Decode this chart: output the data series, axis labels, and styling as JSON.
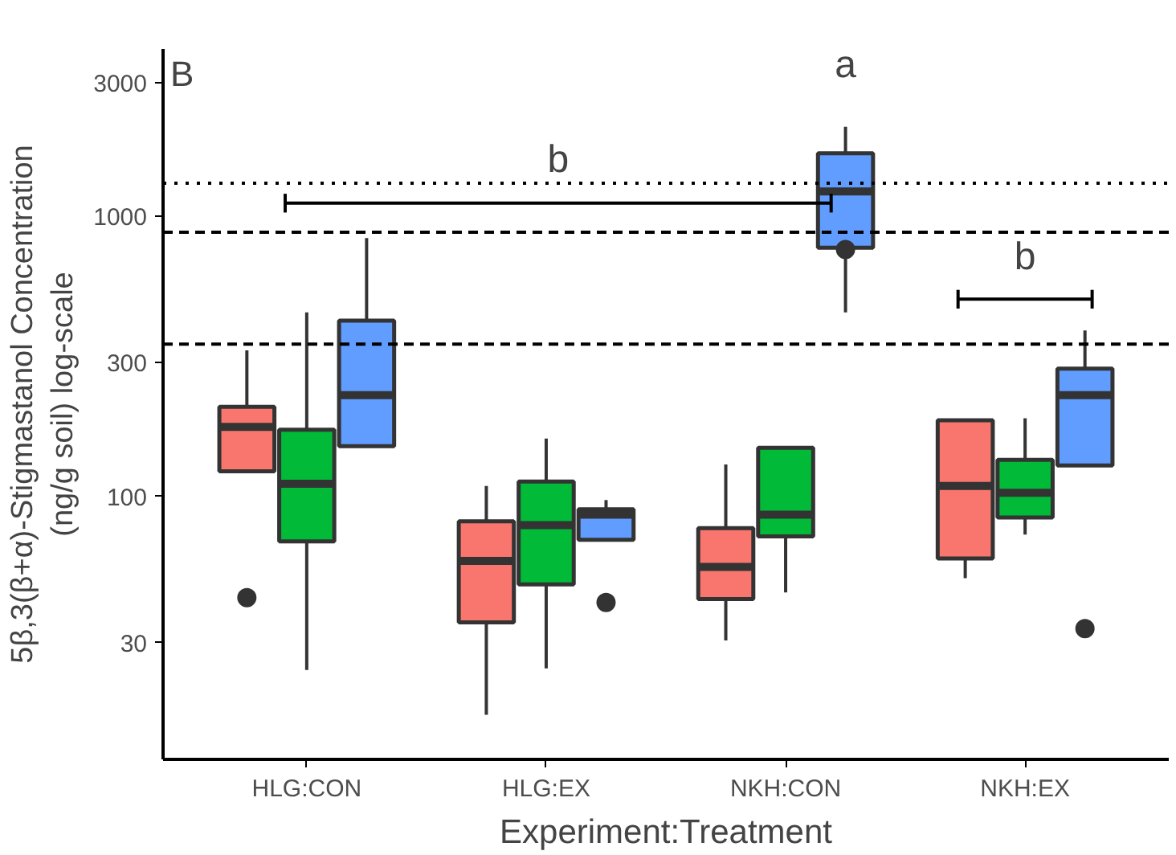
{
  "chart_data": {
    "type": "box",
    "xlabel": "Experiment:Treatment",
    "ylabel": "5β,3(β+α)-Stigmastanol Concentration\n(ng/g soil) log-scale",
    "categories": [
      "HLG:CON",
      "HLG:EX",
      "NKH:CON",
      "NKH:EX"
    ],
    "log": true,
    "ylim": [
      11.5,
      3960
    ],
    "yticks": [
      30,
      100,
      300,
      1000,
      3000
    ],
    "grid": false,
    "series": [
      {
        "color": "#f8766d",
        "boxes": [
          {
            "low": 123,
            "q1": 123,
            "median": 177,
            "q3": 209,
            "high": 332,
            "outliers": [
              43.5
            ]
          },
          {
            "low": 16.6,
            "q1": 35.5,
            "median": 58.8,
            "q3": 81.5,
            "high": 109
          },
          {
            "low": 30.6,
            "q1": 43,
            "median": 56,
            "q3": 77,
            "high": 130
          },
          {
            "low": 51,
            "q1": 60,
            "median": 109,
            "q3": 187,
            "high": 187
          }
        ]
      },
      {
        "color": "#00ba38",
        "boxes": [
          {
            "low": 24,
            "q1": 69,
            "median": 111,
            "q3": 173,
            "high": 454
          },
          {
            "low": 24.3,
            "q1": 48.5,
            "median": 79,
            "q3": 113,
            "high": 161
          },
          {
            "low": 45.4,
            "q1": 72,
            "median": 86,
            "q3": 149,
            "high": 149
          },
          {
            "low": 73,
            "q1": 84,
            "median": 103,
            "q3": 135,
            "high": 190
          }
        ]
      },
      {
        "color": "#619cff",
        "boxes": [
          {
            "low": 151,
            "q1": 151,
            "median": 230,
            "q3": 424,
            "high": 837
          },
          {
            "low": 70,
            "q1": 70,
            "median": 86,
            "q3": 90,
            "high": 97,
            "outliers": [
              41.8
            ]
          },
          {
            "low": 454,
            "q1": 773,
            "median": 1227,
            "q3": 1680,
            "high": 2090,
            "outliers": [
              762
            ]
          },
          {
            "low": 129,
            "q1": 129,
            "median": 230,
            "q3": 286,
            "high": 391,
            "outliers": [
              33.7
            ]
          }
        ]
      }
    ],
    "ref_lines": [
      {
        "axis": "y",
        "value": 1313,
        "line_style": "dotted"
      },
      {
        "axis": "y",
        "value": 877,
        "line_style": "dashed"
      },
      {
        "axis": "y",
        "value": 350,
        "line_style": "dashed"
      }
    ],
    "annotations": [
      "B",
      "a",
      "b",
      "b"
    ]
  }
}
